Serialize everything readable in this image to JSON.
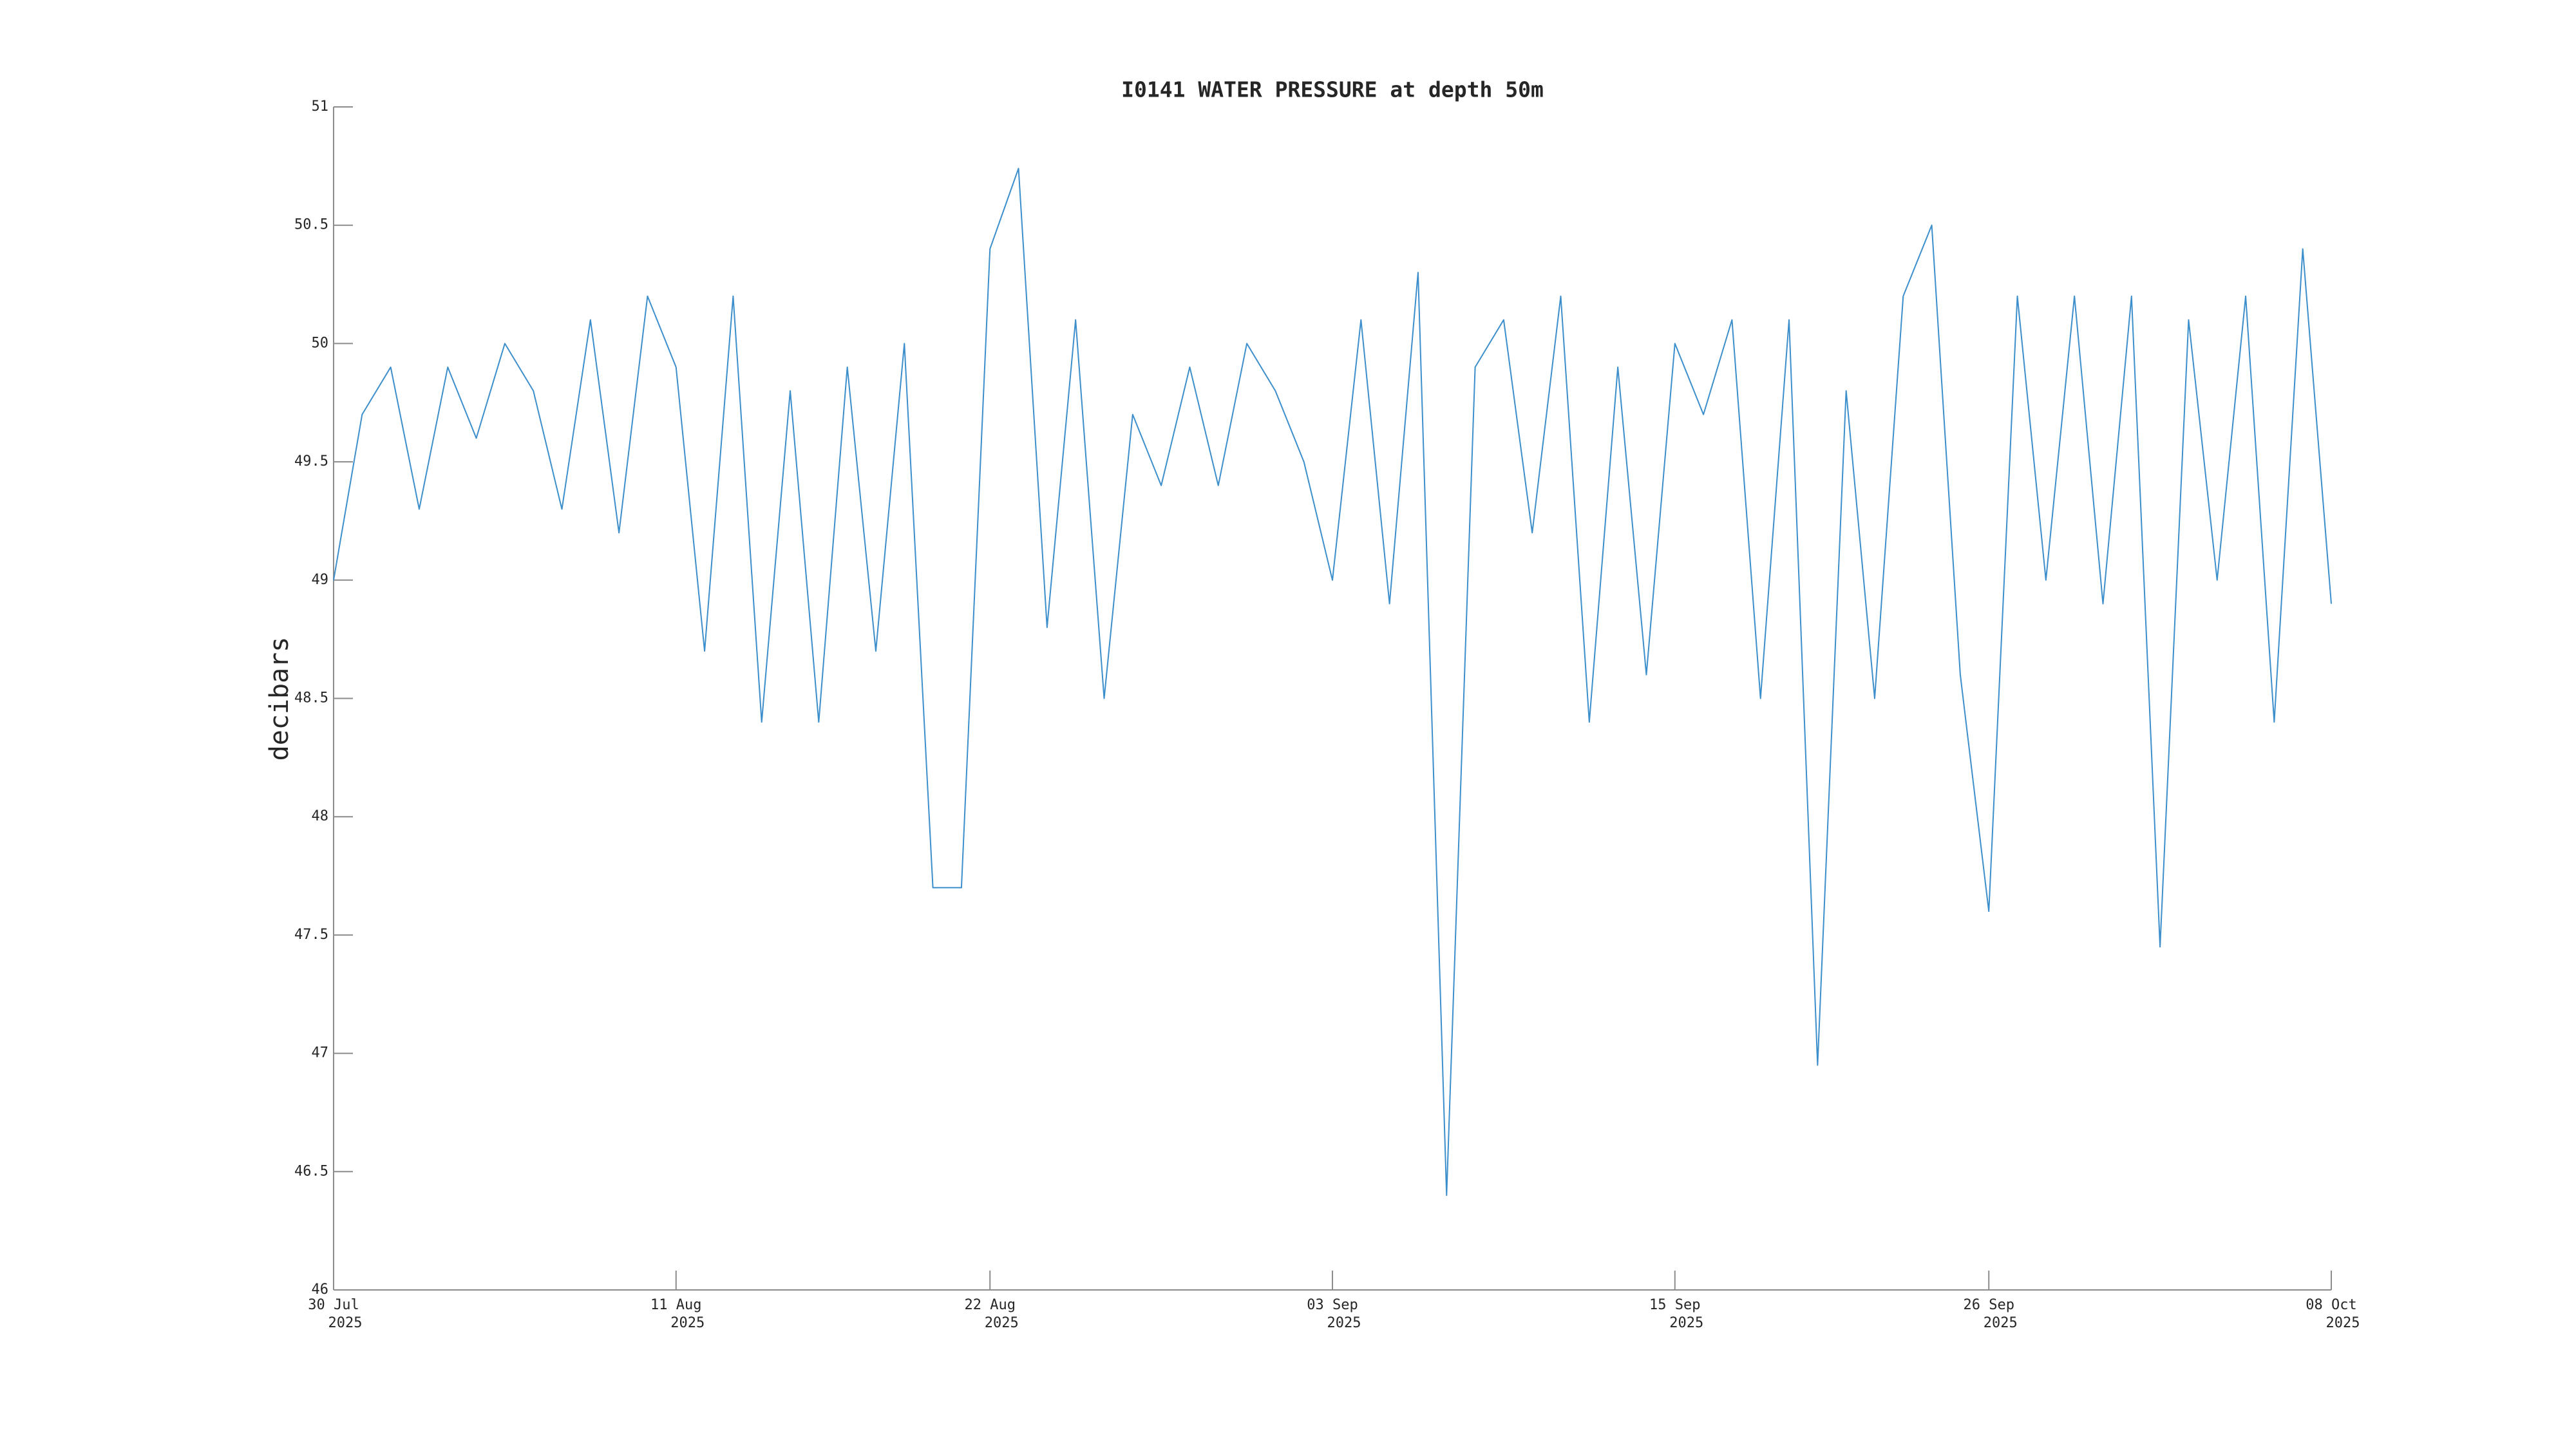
{
  "chart_data": {
    "type": "line",
    "title": "I0141 WATER PRESSURE at depth 50m",
    "y_label": "decibars",
    "x": [
      "2025-07-30",
      "2025-07-31",
      "2025-08-01",
      "2025-08-02",
      "2025-08-03",
      "2025-08-04",
      "2025-08-05",
      "2025-08-06",
      "2025-08-07",
      "2025-08-08",
      "2025-08-09",
      "2025-08-10",
      "2025-08-11",
      "2025-08-12",
      "2025-08-13",
      "2025-08-14",
      "2025-08-15",
      "2025-08-16",
      "2025-08-17",
      "2025-08-18",
      "2025-08-19",
      "2025-08-20",
      "2025-08-21",
      "2025-08-22",
      "2025-08-23",
      "2025-08-24",
      "2025-08-25",
      "2025-08-26",
      "2025-08-27",
      "2025-08-28",
      "2025-08-29",
      "2025-08-30",
      "2025-08-31",
      "2025-09-01",
      "2025-09-02",
      "2025-09-03",
      "2025-09-04",
      "2025-09-05",
      "2025-09-06",
      "2025-09-07",
      "2025-09-08",
      "2025-09-09",
      "2025-09-10",
      "2025-09-11",
      "2025-09-12",
      "2025-09-13",
      "2025-09-14",
      "2025-09-15",
      "2025-09-16",
      "2025-09-17",
      "2025-09-18",
      "2025-09-19",
      "2025-09-20",
      "2025-09-21",
      "2025-09-22",
      "2025-09-23",
      "2025-09-24",
      "2025-09-25",
      "2025-09-26",
      "2025-09-27",
      "2025-09-28",
      "2025-09-29",
      "2025-09-30",
      "2025-10-01",
      "2025-10-02",
      "2025-10-03",
      "2025-10-04",
      "2025-10-05",
      "2025-10-06",
      "2025-10-07",
      "2025-10-08"
    ],
    "series": [
      {
        "color": "#3d8fcc",
        "values": [
          49.0,
          49.7,
          49.9,
          49.3,
          49.9,
          49.6,
          50.0,
          49.8,
          49.3,
          50.1,
          49.2,
          50.2,
          49.9,
          48.7,
          50.2,
          48.4,
          49.8,
          48.4,
          49.9,
          48.7,
          50.0,
          47.7,
          47.7,
          50.4,
          50.74,
          48.8,
          50.1,
          48.5,
          49.7,
          49.4,
          49.9,
          49.4,
          50.0,
          49.8,
          49.5,
          49.0,
          50.1,
          48.9,
          50.3,
          46.4,
          49.9,
          50.1,
          49.2,
          50.2,
          48.4,
          49.9,
          48.6,
          50.0,
          49.7,
          50.1,
          48.5,
          50.1,
          46.95,
          49.8,
          48.5,
          50.2,
          50.5,
          48.6,
          47.6,
          50.2,
          49.0,
          50.2,
          48.9,
          50.2,
          47.45,
          50.1,
          49.0,
          50.2,
          48.4,
          50.4,
          48.9
        ]
      }
    ],
    "xlim": [
      "2025-07-30",
      "2025-10-08"
    ],
    "xticks": [
      {
        "value": "2025-07-30",
        "label": [
          "30 Jul",
          "2025"
        ]
      },
      {
        "value": "2025-08-11",
        "label": [
          "11 Aug",
          "2025"
        ]
      },
      {
        "value": "2025-08-22",
        "label": [
          "22 Aug",
          "2025"
        ]
      },
      {
        "value": "2025-09-03",
        "label": [
          "03 Sep",
          "2025"
        ]
      },
      {
        "value": "2025-09-15",
        "label": [
          "15 Sep",
          "2025"
        ]
      },
      {
        "value": "2025-09-26",
        "label": [
          "26 Sep",
          "2025"
        ]
      },
      {
        "value": "2025-10-08",
        "label": [
          "08 Oct",
          "2025"
        ]
      }
    ],
    "ylim": [
      46,
      51
    ],
    "yticks": [
      46,
      46.5,
      47,
      47.5,
      48,
      48.5,
      49,
      49.5,
      50,
      50.5,
      51
    ],
    "grid": false
  }
}
